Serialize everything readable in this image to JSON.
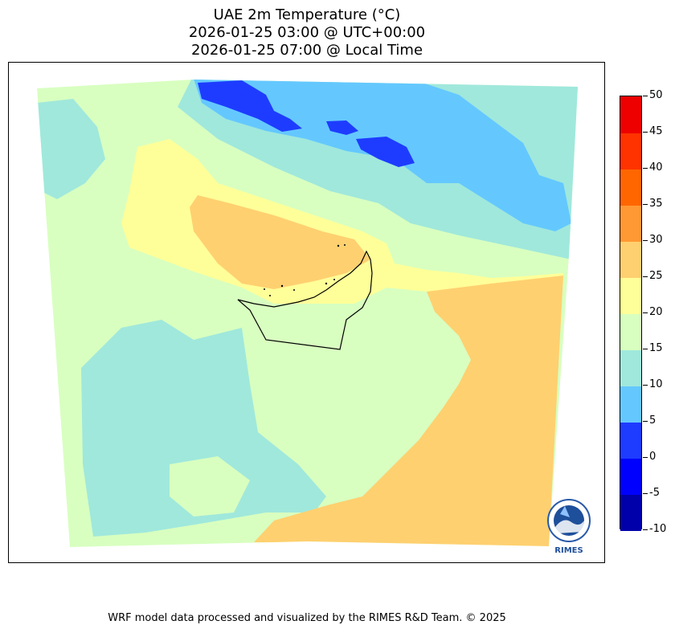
{
  "title": {
    "line1": "UAE 2m Temperature (°C)",
    "line2": "2026-01-25 03:00 @ UTC+00:00",
    "line3": "2026-01-25 07:00 @ Local Time"
  },
  "colorbar": {
    "levels": [
      "-10",
      "-5",
      "0",
      "5",
      "10",
      "15",
      "20",
      "25",
      "30",
      "35",
      "40",
      "45",
      "50"
    ],
    "colors": [
      "#0000aa",
      "#0000ff",
      "#1e3cff",
      "#64c8ff",
      "#a0e8dc",
      "#d8ffc0",
      "#ffff99",
      "#ffd070",
      "#ff9933",
      "#ff6600",
      "#ff3300",
      "#ee0000",
      "#990000"
    ]
  },
  "map": {
    "field_colors": {
      "below_zero": "#1e3cff",
      "zero_five": "#64c8ff",
      "five_ten": "#a0e8dc",
      "ten_fifteen": "#d8ffc0",
      "fifteen_twenty": "#ffff99",
      "twenty_twentyfive": "#ffd070"
    },
    "logo": {
      "text": "RIMES",
      "ring_text": "Regional Integrated Multi-Hazard Early Warning System"
    }
  },
  "footer": "WRF model data processed and visualized by the RIMES R&D Team. © 2025"
}
